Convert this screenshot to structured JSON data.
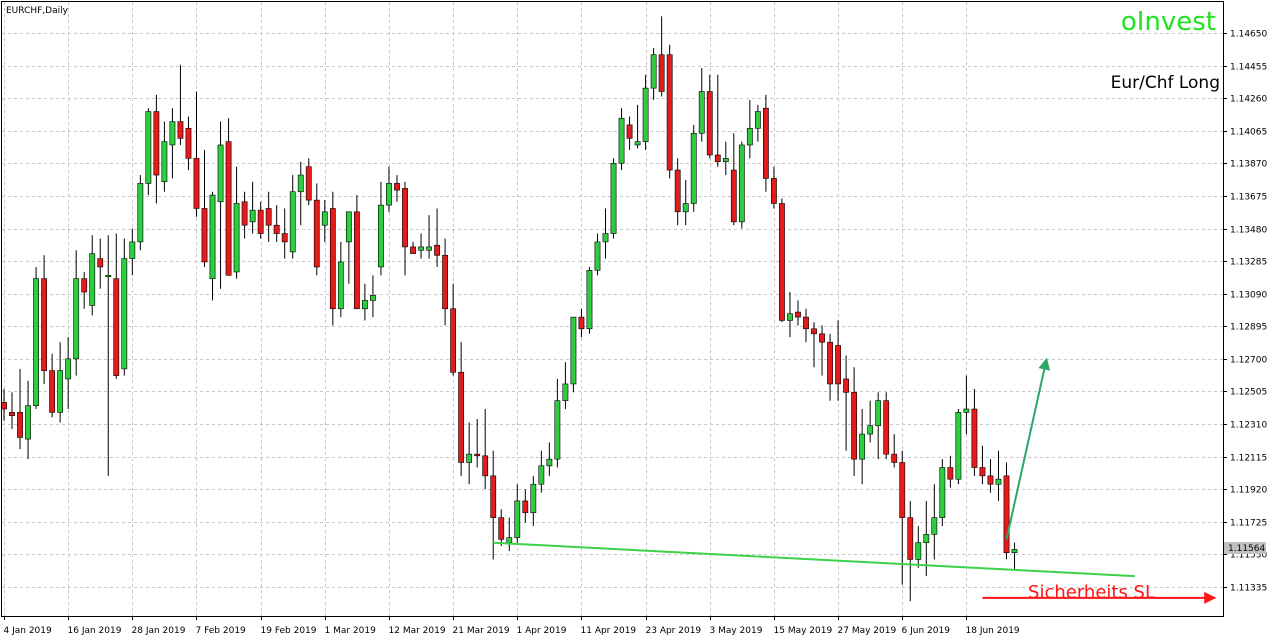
{
  "header": {
    "symbol": "EURCHF,Daily",
    "brand": "oInvest",
    "note": "Eur/Chf Long",
    "stop_label": "Sicherheits SL"
  },
  "colors": {
    "bull": "#2ecc40",
    "bear": "#e41b1b",
    "grid": "#c8c8c8",
    "support_line": "#3cd24a",
    "brand": "#22e322",
    "arrow_up": "#2aa86a",
    "stop": "#ff1414"
  },
  "current_price_label": "1.11564",
  "chart_data": {
    "type": "candlestick",
    "symbol": "EURCHF",
    "timeframe": "Daily",
    "ylim": [
      1.1118,
      1.1482
    ],
    "yticks": [
      "1.14650",
      "1.14455",
      "1.14260",
      "1.14065",
      "1.13870",
      "1.13675",
      "1.13480",
      "1.13285",
      "1.13090",
      "1.12895",
      "1.12700",
      "1.12505",
      "1.12310",
      "1.12115",
      "1.11920",
      "1.11725",
      "1.11530",
      "1.11335"
    ],
    "xticks": [
      {
        "i": 0,
        "label": "4 Jan 2019"
      },
      {
        "i": 8,
        "label": "16 Jan 2019"
      },
      {
        "i": 16,
        "label": "28 Jan 2019"
      },
      {
        "i": 24,
        "label": "7 Feb 2019"
      },
      {
        "i": 32,
        "label": "19 Feb 2019"
      },
      {
        "i": 40,
        "label": "1 Mar 2019"
      },
      {
        "i": 48,
        "label": "12 Mar 2019"
      },
      {
        "i": 56,
        "label": "21 Mar 2019"
      },
      {
        "i": 64,
        "label": "1 Apr 2019"
      },
      {
        "i": 72,
        "label": "11 Apr 2019"
      },
      {
        "i": 80,
        "label": "23 Apr 2019"
      },
      {
        "i": 88,
        "label": "3 May 2019"
      },
      {
        "i": 96,
        "label": "15 May 2019"
      },
      {
        "i": 104,
        "label": "27 May 2019"
      },
      {
        "i": 112,
        "label": "6 Jun 2019"
      },
      {
        "i": 120,
        "label": "18 Jun 2019"
      }
    ],
    "candles": [
      [
        1.1244,
        1.1252,
        1.1233,
        1.124
      ],
      [
        1.1238,
        1.125,
        1.1228,
        1.1236
      ],
      [
        1.1238,
        1.1264,
        1.1216,
        1.1223
      ],
      [
        1.1222,
        1.1257,
        1.121,
        1.1242
      ],
      [
        1.1242,
        1.1325,
        1.124,
        1.1318
      ],
      [
        1.1318,
        1.1332,
        1.1255,
        1.1263
      ],
      [
        1.1263,
        1.1273,
        1.1235,
        1.1238
      ],
      [
        1.1238,
        1.128,
        1.1232,
        1.1263
      ],
      [
        1.1258,
        1.1283,
        1.124,
        1.127
      ],
      [
        1.127,
        1.1335,
        1.126,
        1.1318
      ],
      [
        1.1318,
        1.1322,
        1.13,
        1.131
      ],
      [
        1.1302,
        1.1344,
        1.1296,
        1.1333
      ],
      [
        1.133,
        1.1342,
        1.1312,
        1.1325
      ],
      [
        1.132,
        1.1344,
        1.12,
        1.132
      ],
      [
        1.1318,
        1.1345,
        1.1258,
        1.126
      ],
      [
        1.1264,
        1.1342,
        1.126,
        1.133
      ],
      [
        1.133,
        1.1348,
        1.132,
        1.134
      ],
      [
        1.134,
        1.138,
        1.1335,
        1.1375
      ],
      [
        1.1375,
        1.142,
        1.1368,
        1.1418
      ],
      [
        1.1418,
        1.1428,
        1.1363,
        1.138
      ],
      [
        1.1376,
        1.1412,
        1.137,
        1.14
      ],
      [
        1.1398,
        1.142,
        1.1378,
        1.1412
      ],
      [
        1.1412,
        1.1446,
        1.1398,
        1.1402
      ],
      [
        1.1408,
        1.1415,
        1.1383,
        1.139
      ],
      [
        1.139,
        1.143,
        1.1355,
        1.136
      ],
      [
        1.136,
        1.1395,
        1.1325,
        1.1328
      ],
      [
        1.1318,
        1.137,
        1.1305,
        1.1368
      ],
      [
        1.1364,
        1.1412,
        1.1312,
        1.1398
      ],
      [
        1.14,
        1.1414,
        1.132,
        1.132
      ],
      [
        1.1322,
        1.1385,
        1.1318,
        1.1363
      ],
      [
        1.1364,
        1.137,
        1.1342,
        1.135
      ],
      [
        1.1352,
        1.1376,
        1.1345,
        1.1359
      ],
      [
        1.1359,
        1.1364,
        1.1342,
        1.1345
      ],
      [
        1.136,
        1.137,
        1.134,
        1.135
      ],
      [
        1.135,
        1.1362,
        1.134,
        1.1345
      ],
      [
        1.1345,
        1.136,
        1.133,
        1.134
      ],
      [
        1.1334,
        1.138,
        1.133,
        1.137
      ],
      [
        1.137,
        1.1388,
        1.135,
        1.138
      ],
      [
        1.1385,
        1.139,
        1.1362,
        1.1365
      ],
      [
        1.1365,
        1.1375,
        1.132,
        1.1325
      ],
      [
        1.135,
        1.1365,
        1.134,
        1.1358
      ],
      [
        1.136,
        1.137,
        1.129,
        1.13
      ],
      [
        1.13,
        1.134,
        1.1295,
        1.1328
      ],
      [
        1.134,
        1.1355,
        1.1315,
        1.1358
      ],
      [
        1.1358,
        1.1368,
        1.13,
        1.13
      ],
      [
        1.13,
        1.1315,
        1.1293,
        1.1305
      ],
      [
        1.1305,
        1.132,
        1.1295,
        1.1308
      ],
      [
        1.1325,
        1.1376,
        1.132,
        1.1362
      ],
      [
        1.1362,
        1.1385,
        1.1358,
        1.1375
      ],
      [
        1.1375,
        1.138,
        1.1364,
        1.1371
      ],
      [
        1.1372,
        1.1376,
        1.132,
        1.1337
      ],
      [
        1.1337,
        1.134,
        1.1333,
        1.1333
      ],
      [
        1.1335,
        1.1345,
        1.133,
        1.1337
      ],
      [
        1.1335,
        1.1356,
        1.133,
        1.1337
      ],
      [
        1.1338,
        1.136,
        1.1325,
        1.1332
      ],
      [
        1.1332,
        1.1342,
        1.129,
        1.13
      ],
      [
        1.13,
        1.1315,
        1.126,
        1.1262
      ],
      [
        1.1262,
        1.128,
        1.12,
        1.1208
      ],
      [
        1.1208,
        1.1232,
        1.1195,
        1.1213
      ],
      [
        1.1213,
        1.1234,
        1.1205,
        1.1212
      ],
      [
        1.1212,
        1.124,
        1.1192,
        1.12
      ],
      [
        1.12,
        1.1215,
        1.115,
        1.1175
      ],
      [
        1.1175,
        1.118,
        1.1158,
        1.1162
      ],
      [
        1.116,
        1.1175,
        1.1155,
        1.1163
      ],
      [
        1.1163,
        1.1195,
        1.116,
        1.1185
      ],
      [
        1.1185,
        1.1192,
        1.1172,
        1.1178
      ],
      [
        1.1178,
        1.12,
        1.117,
        1.1195
      ],
      [
        1.1195,
        1.1215,
        1.119,
        1.1206
      ],
      [
        1.1206,
        1.122,
        1.12,
        1.121
      ],
      [
        1.121,
        1.1258,
        1.1205,
        1.1245
      ],
      [
        1.1245,
        1.1268,
        1.124,
        1.1255
      ],
      [
        1.1255,
        1.1295,
        1.125,
        1.1295
      ],
      [
        1.1295,
        1.13,
        1.1283,
        1.1288
      ],
      [
        1.1288,
        1.1325,
        1.1285,
        1.1323
      ],
      [
        1.1323,
        1.1345,
        1.132,
        1.134
      ],
      [
        1.134,
        1.136,
        1.133,
        1.1345
      ],
      [
        1.1345,
        1.139,
        1.1342,
        1.1387
      ],
      [
        1.1387,
        1.142,
        1.1383,
        1.1414
      ],
      [
        1.141,
        1.1415,
        1.1395,
        1.1402
      ],
      [
        1.1398,
        1.1422,
        1.1396,
        1.14
      ],
      [
        1.14,
        1.144,
        1.1395,
        1.1432
      ],
      [
        1.1432,
        1.1456,
        1.1425,
        1.1452
      ],
      [
        1.1452,
        1.1475,
        1.1427,
        1.143
      ],
      [
        1.1452,
        1.1458,
        1.1378,
        1.1383
      ],
      [
        1.1383,
        1.139,
        1.135,
        1.1358
      ],
      [
        1.1358,
        1.1377,
        1.135,
        1.1363
      ],
      [
        1.1363,
        1.141,
        1.1358,
        1.1405
      ],
      [
        1.1405,
        1.1444,
        1.14,
        1.143
      ],
      [
        1.143,
        1.144,
        1.139,
        1.1392
      ],
      [
        1.1392,
        1.144,
        1.1385,
        1.1388
      ],
      [
        1.1388,
        1.14,
        1.138,
        1.139
      ],
      [
        1.1383,
        1.1405,
        1.135,
        1.1352
      ],
      [
        1.1352,
        1.14,
        1.1348,
        1.1398
      ],
      [
        1.1398,
        1.1425,
        1.139,
        1.1408
      ],
      [
        1.1408,
        1.1422,
        1.14,
        1.1418
      ],
      [
        1.142,
        1.1428,
        1.137,
        1.1378
      ],
      [
        1.1378,
        1.1385,
        1.136,
        1.1363
      ],
      [
        1.1363,
        1.1366,
        1.1292,
        1.1293
      ],
      [
        1.1293,
        1.131,
        1.1283,
        1.1297
      ],
      [
        1.1298,
        1.1305,
        1.129,
        1.1295
      ],
      [
        1.1295,
        1.13,
        1.128,
        1.1288
      ],
      [
        1.1288,
        1.1292,
        1.1265,
        1.1285
      ],
      [
        1.1285,
        1.129,
        1.126,
        1.128
      ],
      [
        1.128,
        1.1285,
        1.1245,
        1.1255
      ],
      [
        1.1278,
        1.1293,
        1.1245,
        1.1255
      ],
      [
        1.1258,
        1.1272,
        1.1215,
        1.125
      ],
      [
        1.125,
        1.1265,
        1.12,
        1.121
      ],
      [
        1.121,
        1.124,
        1.1195,
        1.1225
      ],
      [
        1.1225,
        1.1245,
        1.122,
        1.123
      ],
      [
        1.123,
        1.125,
        1.121,
        1.1245
      ],
      [
        1.1245,
        1.125,
        1.121,
        1.1213
      ],
      [
        1.1213,
        1.1225,
        1.1205,
        1.1208
      ],
      [
        1.1208,
        1.1215,
        1.1135,
        1.1175
      ],
      [
        1.1175,
        1.1185,
        1.1125,
        1.115
      ],
      [
        1.115,
        1.117,
        1.1145,
        1.116
      ],
      [
        1.116,
        1.1185,
        1.114,
        1.1165
      ],
      [
        1.1165,
        1.1195,
        1.115,
        1.1175
      ],
      [
        1.1175,
        1.121,
        1.117,
        1.1205
      ],
      [
        1.1205,
        1.1212,
        1.1193,
        1.1198
      ],
      [
        1.1198,
        1.124,
        1.1195,
        1.1238
      ],
      [
        1.1238,
        1.126,
        1.1225,
        1.124
      ],
      [
        1.124,
        1.1252,
        1.12,
        1.1205
      ],
      [
        1.1205,
        1.1218,
        1.1195,
        1.12
      ],
      [
        1.12,
        1.121,
        1.119,
        1.1195
      ],
      [
        1.1195,
        1.1215,
        1.1185,
        1.1198
      ],
      [
        1.12,
        1.1208,
        1.115,
        1.1154
      ],
      [
        1.1154,
        1.116,
        1.1144,
        1.1156
      ]
    ],
    "support_line": {
      "from_i": 61,
      "from_price": 1.116,
      "to_i": 141,
      "to_price": 1.114
    },
    "projection_arrow": {
      "from_i": 125,
      "from_price": 1.1162,
      "to_i": 130,
      "to_price": 1.127
    },
    "stop_arrow": {
      "from_i": 122,
      "from_price": 1.1127,
      "to_i": 151,
      "to_price": 1.1127
    }
  }
}
